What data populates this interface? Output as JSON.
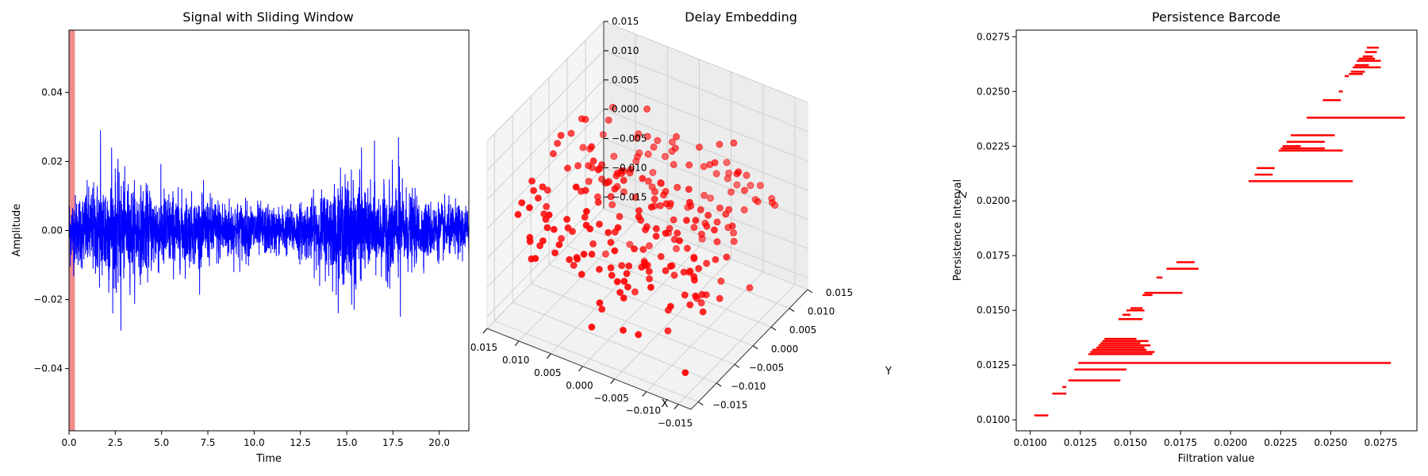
{
  "chart_data": [
    {
      "type": "line",
      "title": "Signal with Sliding Window",
      "xlabel": "Time",
      "ylabel": "Amplitude",
      "xlim": [
        0,
        21.6
      ],
      "ylim": [
        -0.058,
        0.058
      ],
      "xticks": [
        0.0,
        2.5,
        5.0,
        7.5,
        10.0,
        12.5,
        15.0,
        17.5,
        20.0
      ],
      "xtick_labels": [
        "0.0",
        "2.5",
        "5.0",
        "7.5",
        "10.0",
        "12.5",
        "15.0",
        "17.5",
        "20.0"
      ],
      "yticks": [
        -0.04,
        -0.02,
        0.0,
        0.02,
        0.04
      ],
      "ytick_labels": [
        "−0.04",
        "−0.02",
        "0.00",
        "0.02",
        "0.04"
      ],
      "series_color": "#0000ff",
      "window": {
        "x_start": 0.0,
        "x_end": 0.32,
        "color": "#f08080"
      },
      "envelope": [
        {
          "x": 0.0,
          "amp": 0.012
        },
        {
          "x": 0.5,
          "amp": 0.012
        },
        {
          "x": 1.0,
          "amp": 0.014
        },
        {
          "x": 1.5,
          "amp": 0.016
        },
        {
          "x": 2.0,
          "amp": 0.02
        },
        {
          "x": 2.5,
          "amp": 0.019
        },
        {
          "x": 3.0,
          "amp": 0.016
        },
        {
          "x": 4.0,
          "amp": 0.014
        },
        {
          "x": 5.0,
          "amp": 0.014
        },
        {
          "x": 6.0,
          "amp": 0.012
        },
        {
          "x": 7.0,
          "amp": 0.011
        },
        {
          "x": 8.0,
          "amp": 0.011
        },
        {
          "x": 9.0,
          "amp": 0.01
        },
        {
          "x": 10.0,
          "amp": 0.009
        },
        {
          "x": 11.0,
          "amp": 0.008
        },
        {
          "x": 12.0,
          "amp": 0.008
        },
        {
          "x": 13.0,
          "amp": 0.01
        },
        {
          "x": 14.0,
          "amp": 0.014
        },
        {
          "x": 15.0,
          "amp": 0.018
        },
        {
          "x": 15.5,
          "amp": 0.017
        },
        {
          "x": 16.0,
          "amp": 0.013
        },
        {
          "x": 17.0,
          "amp": 0.013
        },
        {
          "x": 17.5,
          "amp": 0.017
        },
        {
          "x": 18.0,
          "amp": 0.014
        },
        {
          "x": 19.0,
          "amp": 0.01
        },
        {
          "x": 20.0,
          "amp": 0.009
        },
        {
          "x": 21.6,
          "amp": 0.008
        }
      ],
      "peaks": [
        {
          "x": 1.7,
          "y": 0.029
        },
        {
          "x": 2.8,
          "y": -0.029
        },
        {
          "x": 16.5,
          "y": 0.026
        },
        {
          "x": 17.8,
          "y": 0.027
        },
        {
          "x": 17.9,
          "y": -0.025
        },
        {
          "x": 15.4,
          "y": -0.023
        },
        {
          "x": 15.8,
          "y": 0.024
        },
        {
          "x": 2.3,
          "y": 0.024
        }
      ]
    },
    {
      "type": "scatter",
      "title": "Delay Embedding",
      "xlabel": "X",
      "ylabel": "Y",
      "zlabel": "Z",
      "xlim": [
        -0.017,
        0.015
      ],
      "ylim": [
        -0.017,
        0.015
      ],
      "zlim": [
        -0.017,
        0.015
      ],
      "xtick_labels": [
        "−0.015",
        "−0.010",
        "−0.005",
        "0.000",
        "0.005",
        "0.010",
        "0.015"
      ],
      "ytick_labels": [
        "−0.015",
        "−0.010",
        "−0.005",
        "0.000",
        "0.005",
        "0.010",
        "0.015"
      ],
      "ztick_labels": [
        "−0.015",
        "−0.010",
        "−0.005",
        "0.000",
        "0.005",
        "0.010",
        "0.015"
      ],
      "marker_color": "#ff0000",
      "point_count": 250
    },
    {
      "type": "bar",
      "title": "Persistence Barcode",
      "xlabel": "Filtration value",
      "ylabel": "Persistence Interval",
      "xlim": [
        0.0093,
        0.0293
      ],
      "ylim": [
        0.0095,
        0.0278
      ],
      "xticks": [
        0.01,
        0.0125,
        0.015,
        0.0175,
        0.02,
        0.0225,
        0.025,
        0.0275
      ],
      "xtick_labels": [
        "0.0100",
        "0.0125",
        "0.0150",
        "0.0175",
        "0.0200",
        "0.0225",
        "0.0250",
        "0.0275"
      ],
      "yticks": [
        0.01,
        0.0125,
        0.015,
        0.0175,
        0.02,
        0.0225,
        0.025,
        0.0275
      ],
      "ytick_labels": [
        "0.0100",
        "0.0125",
        "0.0150",
        "0.0175",
        "0.0200",
        "0.0225",
        "0.0250",
        "0.0275"
      ],
      "bar_color": "#ff0000",
      "intervals": [
        [
          0.0102,
          0.0109,
          0.0102
        ],
        [
          0.0111,
          0.0118,
          0.0112
        ],
        [
          0.0116,
          0.0118,
          0.0115
        ],
        [
          0.0119,
          0.0145,
          0.0118
        ],
        [
          0.0122,
          0.0148,
          0.0123
        ],
        [
          0.0124,
          0.028,
          0.0126
        ],
        [
          0.0129,
          0.0161,
          0.013
        ],
        [
          0.013,
          0.0162,
          0.0131
        ],
        [
          0.0131,
          0.0158,
          0.0132
        ],
        [
          0.0133,
          0.0157,
          0.0133
        ],
        [
          0.0134,
          0.016,
          0.0134
        ],
        [
          0.0135,
          0.0155,
          0.0135
        ],
        [
          0.0136,
          0.0159,
          0.0136
        ],
        [
          0.0137,
          0.0153,
          0.0137
        ],
        [
          0.0144,
          0.0156,
          0.0146
        ],
        [
          0.0146,
          0.015,
          0.0148
        ],
        [
          0.0148,
          0.0157,
          0.015
        ],
        [
          0.015,
          0.0156,
          0.0151
        ],
        [
          0.0156,
          0.0161,
          0.0157
        ],
        [
          0.0157,
          0.0176,
          0.0158
        ],
        [
          0.0163,
          0.0166,
          0.0165
        ],
        [
          0.0168,
          0.0184,
          0.0169
        ],
        [
          0.0173,
          0.0182,
          0.0172
        ],
        [
          0.0209,
          0.0261,
          0.0209
        ],
        [
          0.0212,
          0.0221,
          0.0212
        ],
        [
          0.0213,
          0.0222,
          0.0215
        ],
        [
          0.0224,
          0.0256,
          0.0223
        ],
        [
          0.0225,
          0.0247,
          0.0224
        ],
        [
          0.0226,
          0.0235,
          0.0225
        ],
        [
          0.0228,
          0.0247,
          0.0227
        ],
        [
          0.023,
          0.0252,
          0.023
        ],
        [
          0.0238,
          0.0287,
          0.0238
        ],
        [
          0.0246,
          0.0255,
          0.0246
        ],
        [
          0.0254,
          0.0256,
          0.025
        ],
        [
          0.0257,
          0.0259,
          0.0257
        ],
        [
          0.0259,
          0.0266,
          0.0258
        ],
        [
          0.026,
          0.0267,
          0.0259
        ],
        [
          0.0261,
          0.0275,
          0.0261
        ],
        [
          0.0262,
          0.0269,
          0.0262
        ],
        [
          0.0263,
          0.0275,
          0.0264
        ],
        [
          0.0264,
          0.0272,
          0.0265
        ],
        [
          0.0266,
          0.0271,
          0.0266
        ],
        [
          0.0267,
          0.0273,
          0.0268
        ],
        [
          0.0268,
          0.0274,
          0.027
        ]
      ]
    }
  ]
}
